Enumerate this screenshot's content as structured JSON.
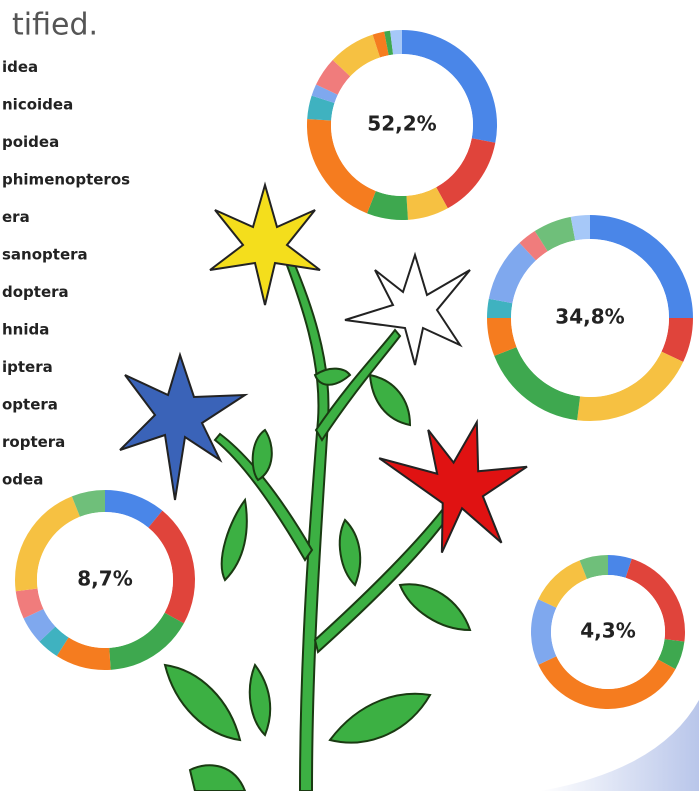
{
  "title": "tified.",
  "legend": [
    "idea",
    "nicoidea",
    "poidea",
    "phimenopteros",
    "era",
    "sanoptera",
    "doptera",
    "hnida",
    "iptera",
    "optera",
    "roptera",
    "odea"
  ],
  "chart_data": [
    {
      "type": "donut",
      "center_label": "52,2%",
      "values": [
        28,
        14,
        7,
        7,
        20,
        4,
        2,
        5,
        8,
        2,
        1,
        2
      ],
      "colors": [
        "#4a86e8",
        "#e0443b",
        "#f6c142",
        "#3ea84f",
        "#f57c1f",
        "#3fb2c0",
        "#7fa8ee",
        "#f07c7c",
        "#f6c142",
        "#f57c1f",
        "#3ea84f",
        "#a6c8f8"
      ]
    },
    {
      "type": "donut",
      "center_label": "34,8%",
      "values": [
        25,
        7,
        20,
        17,
        6,
        3,
        10,
        3,
        6,
        3
      ],
      "colors": [
        "#4a86e8",
        "#e0443b",
        "#f6c142",
        "#3ea84f",
        "#f57c1f",
        "#3fb2c0",
        "#7fa8ee",
        "#f07c7c",
        "#6fbf7a",
        "#a6c8f8"
      ]
    },
    {
      "type": "donut",
      "center_label": "8,7%",
      "values": [
        11,
        22,
        16,
        10,
        4,
        5,
        5,
        21,
        6
      ],
      "colors": [
        "#4a86e8",
        "#e0443b",
        "#3ea84f",
        "#f57c1f",
        "#3fb2c0",
        "#7fa8ee",
        "#f07c7c",
        "#f6c142",
        "#6fbf7a"
      ]
    },
    {
      "type": "donut",
      "center_label": "4,3%",
      "values": [
        5,
        22,
        6,
        35,
        14,
        12,
        6
      ],
      "colors": [
        "#4a86e8",
        "#e0443b",
        "#3ea84f",
        "#f57c1f",
        "#7fa8ee",
        "#f6c142",
        "#6fbf7a"
      ]
    }
  ]
}
